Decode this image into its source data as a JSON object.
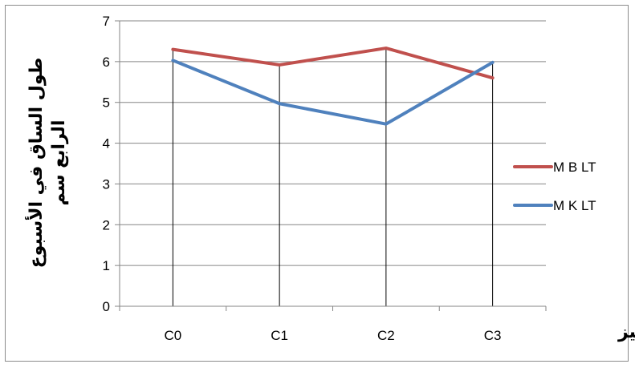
{
  "chart_data": {
    "type": "line",
    "categories": [
      "C0",
      "C1",
      "C2",
      "C3"
    ],
    "series": [
      {
        "name": "M B LT",
        "values": [
          6.3,
          5.92,
          6.33,
          5.6
        ],
        "color": "#c0504d"
      },
      {
        "name": "M K LT",
        "values": [
          6.03,
          4.97,
          4.47,
          5.98
        ],
        "color": "#4f81bd"
      }
    ],
    "xlabel": "التركيز",
    "ylabel_lines": [
      "طول الساق في الأسبوع",
      "الرابع سم"
    ],
    "ylim": [
      0,
      7
    ],
    "yticks": [
      0,
      1,
      2,
      3,
      4,
      5,
      6,
      7
    ],
    "grid": true,
    "drop_lines": true,
    "legend_position": "right"
  }
}
